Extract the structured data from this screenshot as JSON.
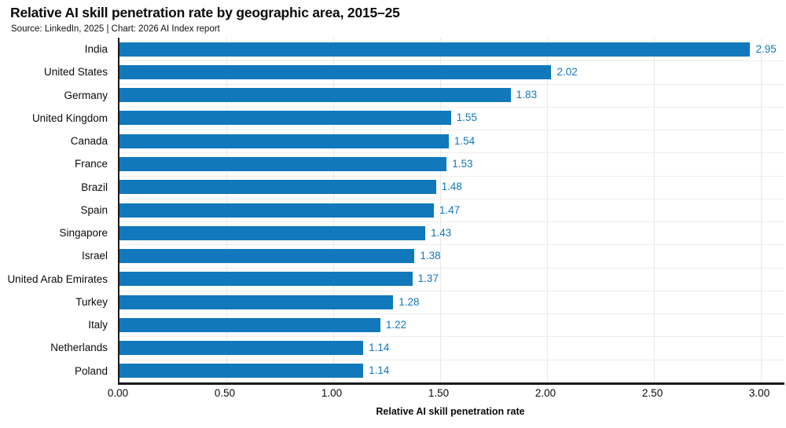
{
  "header": {
    "title": "Relative AI skill penetration rate by geographic area, 2015–25",
    "source": "Source: LinkedIn, 2025 | Chart: 2026 AI Index report"
  },
  "chart_data": {
    "type": "bar",
    "orientation": "horizontal",
    "title": "Relative AI skill penetration rate by geographic area, 2015–25",
    "subtitle": "Source: LinkedIn, 2025 | Chart: 2026 AI Index report",
    "categories": [
      "India",
      "United States",
      "Germany",
      "United Kingdom",
      "Canada",
      "France",
      "Brazil",
      "Spain",
      "Singapore",
      "Israel",
      "United Arab Emirates",
      "Turkey",
      "Italy",
      "Netherlands",
      "Poland"
    ],
    "values": [
      2.95,
      2.02,
      1.83,
      1.55,
      1.54,
      1.53,
      1.48,
      1.47,
      1.43,
      1.38,
      1.37,
      1.28,
      1.22,
      1.14,
      1.14
    ],
    "value_labels": [
      "2.95",
      "2.02",
      "1.83",
      "1.55",
      "1.54",
      "1.53",
      "1.48",
      "1.47",
      "1.43",
      "1.38",
      "1.37",
      "1.28",
      "1.22",
      "1.14",
      "1.14"
    ],
    "xlabel": "Relative AI skill penetration rate",
    "ylabel": "",
    "xlim": [
      0,
      3.11
    ],
    "xticks": [
      0,
      0.5,
      1.0,
      1.5,
      2.0,
      2.5,
      3.0
    ],
    "xtick_labels": [
      "0.00",
      "0.50",
      "1.00",
      "1.50",
      "2.00",
      "2.50",
      "3.00"
    ],
    "grid": "vertical gridlines every 0.50, faint horizontal row separators",
    "legend": "none",
    "colors": {
      "bar": "#1178bc",
      "value_label": "#1377bd",
      "axis": "#1a1a1a",
      "vertical_gridline": "#e9e9e9",
      "horizontal_gridline": "#f0edeb",
      "text": "#0b0b0b",
      "background": "#ffffff"
    }
  }
}
